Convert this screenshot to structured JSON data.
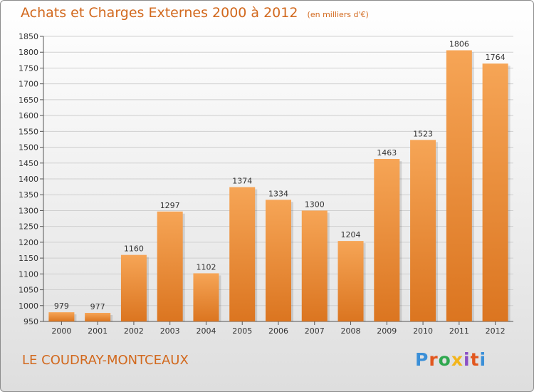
{
  "header": {
    "title": "Achats et Charges Externes 2000 à 2012",
    "subtitle": "(en milliers d'€)"
  },
  "footer": {
    "commune": "LE COUDRAY-MONTCEAUX",
    "brand": "Proxiti"
  },
  "colors": {
    "title": "#d2691e",
    "bar_light": "#f6a556",
    "bar_dark": "#db7520",
    "brand": [
      "#3a8fd8",
      "#e2571e",
      "#2fa84f",
      "#f2b51c",
      "#8a4fc6",
      "#e2571e",
      "#3a8fd8"
    ]
  },
  "chart_data": {
    "type": "bar",
    "title": "Achats et Charges Externes 2000 à 2012",
    "subtitle": "(en milliers d'€)",
    "categories": [
      "2000",
      "2001",
      "2002",
      "2003",
      "2004",
      "2005",
      "2006",
      "2007",
      "2008",
      "2009",
      "2010",
      "2011",
      "2012"
    ],
    "values": [
      979,
      977,
      1160,
      1297,
      1102,
      1374,
      1334,
      1300,
      1204,
      1463,
      1523,
      1806,
      1764
    ],
    "ylim": [
      950,
      1850
    ],
    "yticks": [
      950,
      1000,
      1050,
      1100,
      1150,
      1200,
      1250,
      1300,
      1350,
      1400,
      1450,
      1500,
      1550,
      1600,
      1650,
      1700,
      1750,
      1800,
      1850
    ],
    "grid": true,
    "legend": "none"
  }
}
